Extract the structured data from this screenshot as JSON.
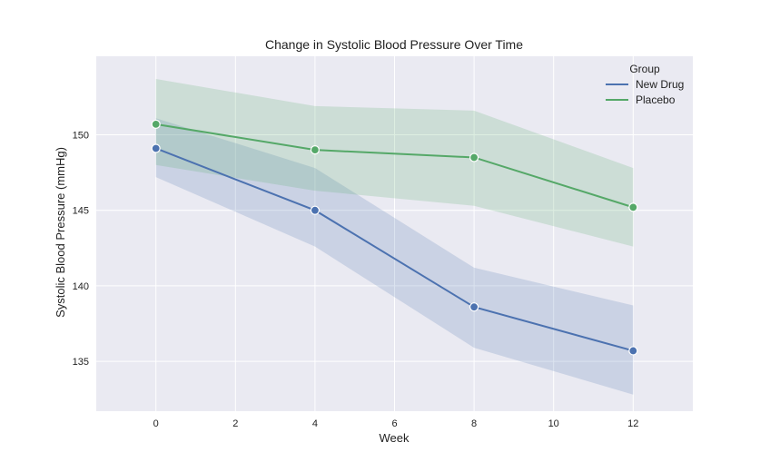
{
  "chart_data": {
    "type": "line",
    "title": "Change in Systolic Blood Pressure Over Time",
    "xlabel": "Week",
    "ylabel": "Systolic Blood Pressure (mmHg)",
    "xlim": [
      -1.5,
      13.5
    ],
    "ylim": [
      131.7,
      155.2
    ],
    "x_ticks": [
      0,
      2,
      4,
      6,
      8,
      10,
      12
    ],
    "y_ticks": [
      135,
      140,
      145,
      150
    ],
    "grid": true,
    "legend": {
      "title": "Group",
      "position": "top-right",
      "entries": [
        "New Drug",
        "Placebo"
      ]
    },
    "series": [
      {
        "name": "New Drug",
        "color": "#4c72b0",
        "x": [
          0,
          4,
          8,
          12
        ],
        "values": [
          149.1,
          145.0,
          138.6,
          135.7
        ],
        "ci_lower": [
          147.2,
          142.6,
          135.9,
          132.8
        ],
        "ci_upper": [
          151.1,
          147.8,
          141.2,
          138.7
        ]
      },
      {
        "name": "Placebo",
        "color": "#55a868",
        "x": [
          0,
          4,
          8,
          12
        ],
        "values": [
          150.7,
          149.0,
          148.5,
          145.2
        ],
        "ci_lower": [
          148.0,
          146.3,
          145.3,
          142.6
        ],
        "ci_upper": [
          153.7,
          151.9,
          151.6,
          147.8
        ]
      }
    ]
  }
}
